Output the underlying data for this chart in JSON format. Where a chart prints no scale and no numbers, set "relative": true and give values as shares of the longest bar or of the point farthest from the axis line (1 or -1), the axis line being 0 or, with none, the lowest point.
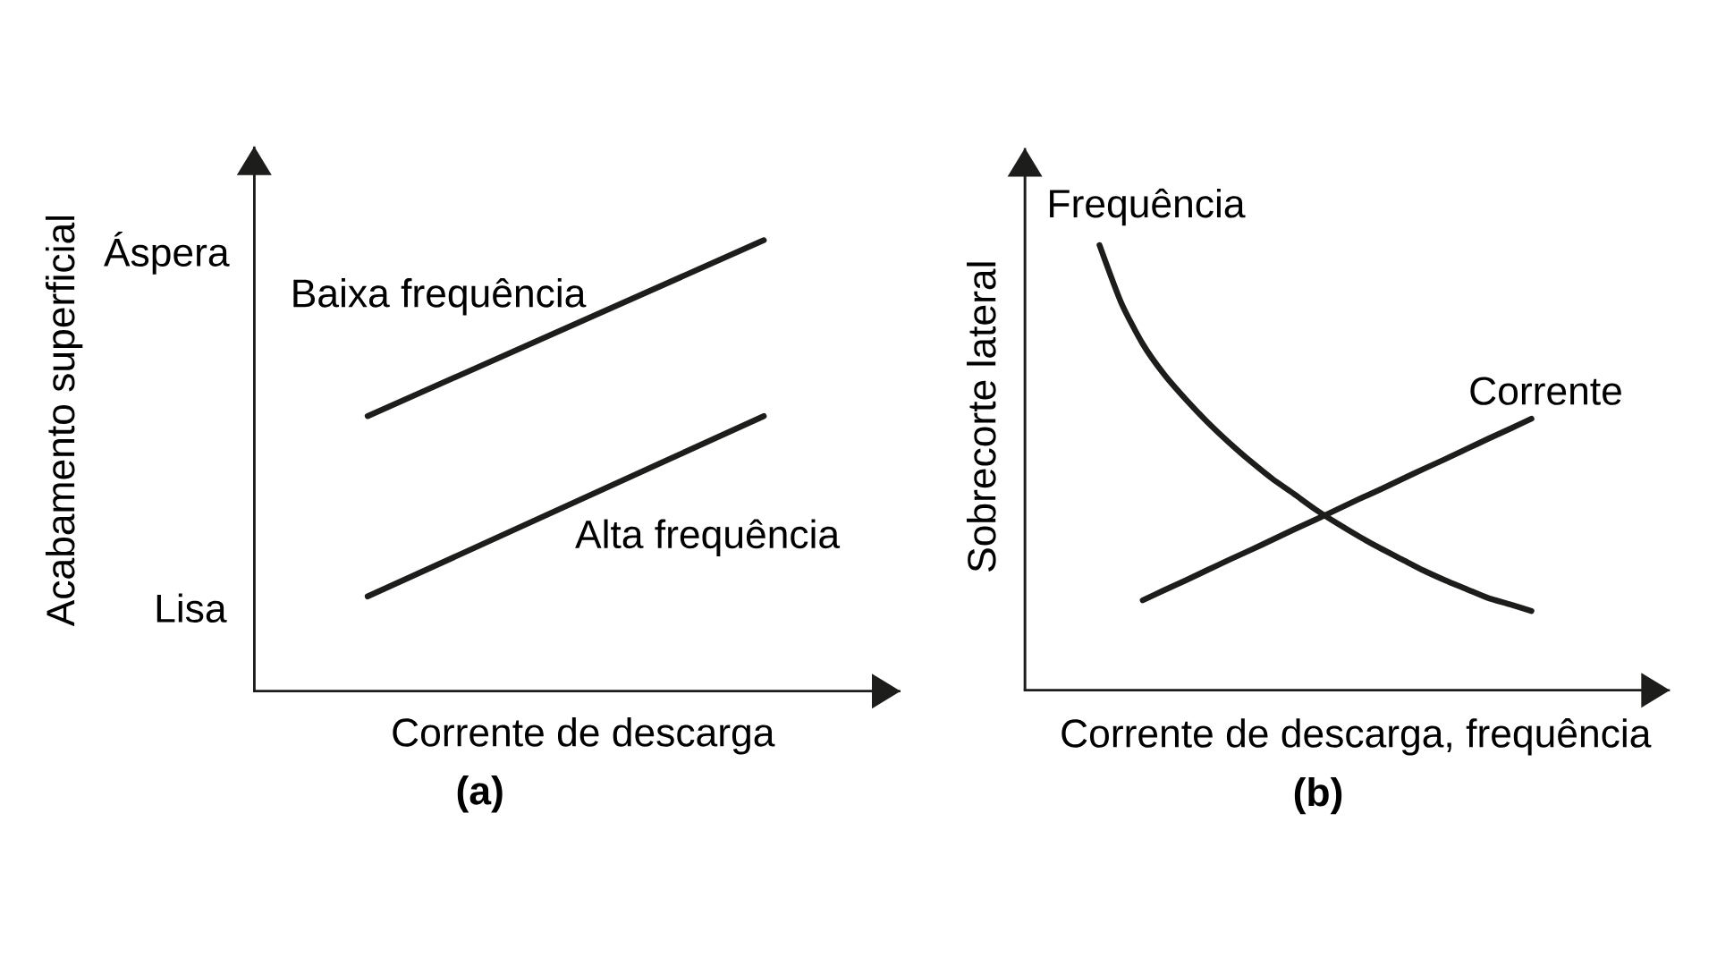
{
  "chart_data": [
    {
      "type": "line",
      "title": "(a)",
      "xlabel": "Corrente de descarga",
      "ylabel": "Acabamento superficial",
      "relative": true,
      "categories": [
        null,
        null
      ],
      "series": [
        {
          "name": "Baixa frequência",
          "color": "#1d1d1b",
          "values": [
            0.61,
            1
          ]
        },
        {
          "name": "Alta frequência",
          "color": "#1d1d1b",
          "values": [
            0.21,
            0.61
          ]
        }
      ],
      "annotations": [
        "Áspera",
        "Lisa"
      ]
    },
    {
      "type": "line",
      "title": "(b)",
      "xlabel": "Corrente de descarga, frequência",
      "ylabel": "Sobrecorte lateral",
      "relative": true,
      "categories": [
        null,
        null,
        null,
        null,
        null,
        null,
        null,
        null,
        null,
        null,
        null,
        null,
        null,
        null,
        null,
        null,
        null,
        null,
        null,
        null,
        null
      ],
      "series": [
        {
          "name": "Frequência",
          "color": "#1d1d1b",
          "values": [
            1,
            0.871,
            0.778,
            0.709,
            0.653,
            0.602,
            0.556,
            0.514,
            0.475,
            0.441,
            0.406,
            0.375,
            0.346,
            0.319,
            0.294,
            0.269,
            0.247,
            0.227,
            0.207,
            0.193,
            0.178
          ]
        },
        {
          "name": "Corrente",
          "color": "#1d1d1b",
          "values": [
            null,
            null,
            0.202,
            0.225,
            0.247,
            0.27,
            0.293,
            0.315,
            0.338,
            0.361,
            0.383,
            0.406,
            0.429,
            0.451,
            0.474,
            0.497,
            0.519,
            0.542,
            0.565,
            0.587,
            0.61
          ]
        }
      ]
    }
  ]
}
